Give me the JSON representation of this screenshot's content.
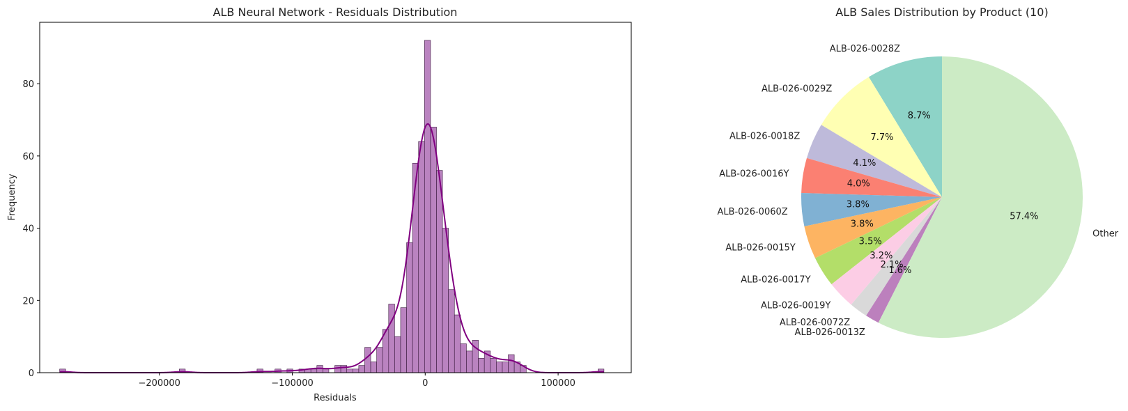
{
  "chart_data": [
    {
      "type": "bar",
      "subtype": "histogram",
      "title": "ALB Neural Network - Residuals Distribution",
      "xlabel": "Residuals",
      "ylabel": "Frequency",
      "xlim": [
        -290000,
        155000
      ],
      "ylim": [
        0,
        97
      ],
      "xticks": [
        -200000,
        -100000,
        0,
        100000
      ],
      "xtick_labels": [
        "−200000",
        "−100000",
        "0",
        "100000"
      ],
      "yticks": [
        0,
        20,
        40,
        60,
        80
      ],
      "yticks_labels": [
        "0",
        "20",
        "40",
        "60",
        "80"
      ],
      "bin_start": -275000,
      "bin_width": 4500,
      "bin_counts": [
        1,
        0,
        0,
        0,
        0,
        0,
        0,
        0,
        0,
        0,
        0,
        0,
        0,
        0,
        0,
        0,
        0,
        0,
        0,
        0,
        1,
        0,
        0,
        0,
        0,
        0,
        0,
        0,
        0,
        0,
        0,
        0,
        0,
        1,
        0,
        0,
        1,
        0,
        1,
        0,
        1,
        1,
        1,
        2,
        1,
        0,
        2,
        2,
        1,
        1,
        2,
        7,
        3,
        7,
        12,
        19,
        10,
        18,
        36,
        58,
        64,
        92,
        68,
        56,
        40,
        23,
        16,
        8,
        6,
        9,
        4,
        6,
        4,
        3,
        3,
        5,
        3,
        2,
        0,
        0,
        0,
        0,
        0,
        0,
        0,
        0,
        0,
        0,
        0,
        0,
        1
      ],
      "color": "#b276b9",
      "edge_color": "#3a1a3e",
      "kde_color": "#800080",
      "kde": true,
      "grid": false
    },
    {
      "type": "pie",
      "title": "ALB Sales Distribution by Product (10)",
      "start_angle_deg": 90,
      "direction": "counterclockwise",
      "slices": [
        {
          "label": "ALB-026-0028Z",
          "value": 8.7,
          "pct_label": "8.7%",
          "color": "#8dd3c7"
        },
        {
          "label": "ALB-026-0029Z",
          "value": 7.7,
          "pct_label": "7.7%",
          "color": "#ffffb3"
        },
        {
          "label": "ALB-026-0018Z",
          "value": 4.1,
          "pct_label": "4.1%",
          "color": "#bebada"
        },
        {
          "label": "ALB-026-0016Y",
          "value": 4.0,
          "pct_label": "4.0%",
          "color": "#fb8072"
        },
        {
          "label": "ALB-026-0060Z",
          "value": 3.8,
          "pct_label": "3.8%",
          "color": "#80b1d3"
        },
        {
          "label": "ALB-026-0015Y",
          "value": 3.8,
          "pct_label": "3.8%",
          "color": "#fdb462"
        },
        {
          "label": "ALB-026-0017Y",
          "value": 3.5,
          "pct_label": "3.5%",
          "color": "#b3de69"
        },
        {
          "label": "ALB-026-0019Y",
          "value": 3.2,
          "pct_label": "3.2%",
          "color": "#fccde5"
        },
        {
          "label": "ALB-026-0072Z",
          "value": 2.1,
          "pct_label": "2.1%",
          "color": "#d9d9d9"
        },
        {
          "label": "ALB-026-0013Z",
          "value": 1.6,
          "pct_label": "1.6%",
          "color": "#bc80bd"
        },
        {
          "label": "Other",
          "value": 57.4,
          "pct_label": "57.4%",
          "color": "#ccebc5"
        }
      ]
    }
  ]
}
